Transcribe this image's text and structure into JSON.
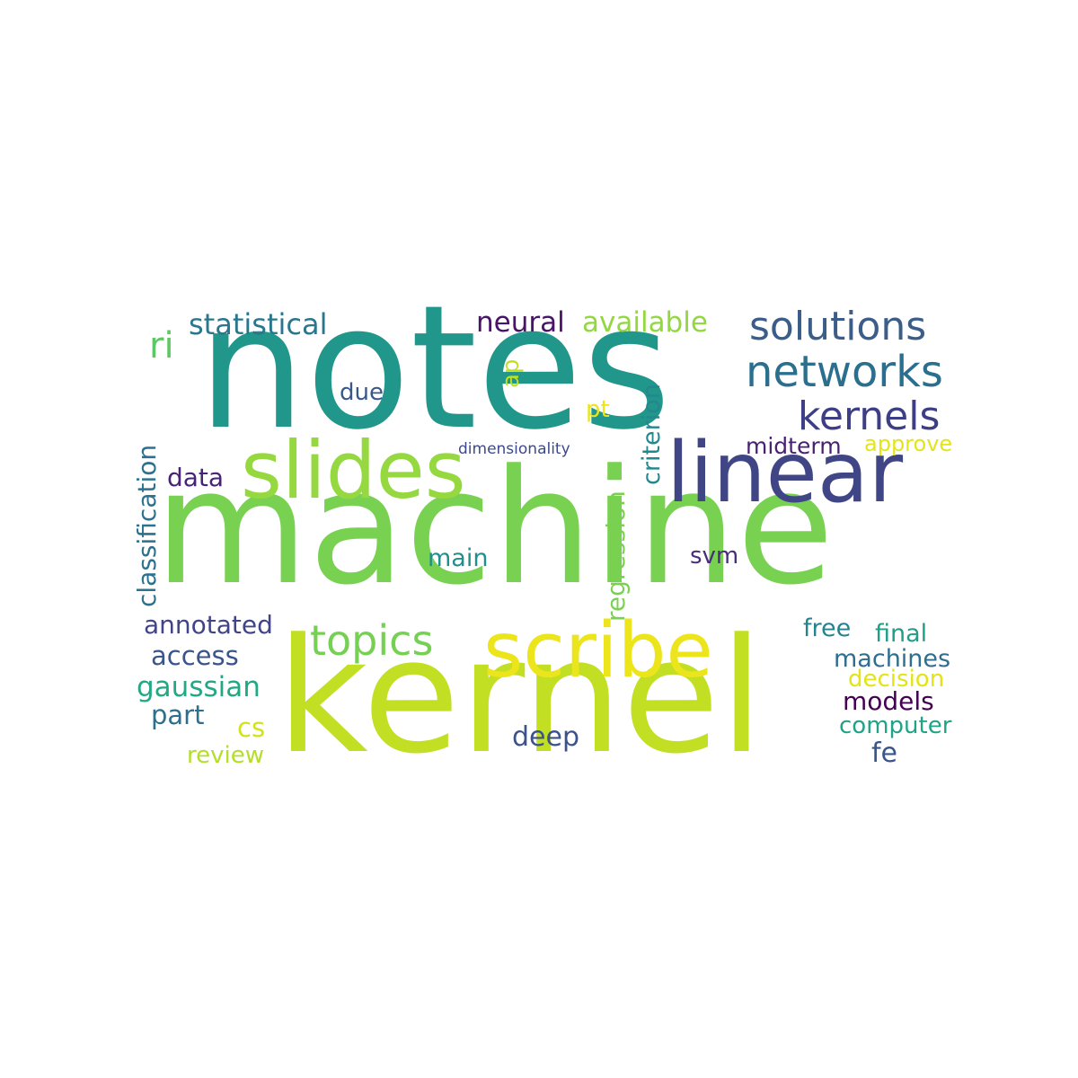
{
  "words": {
    "notes": {
      "text": "notes",
      "color": "#21968b"
    },
    "machine": {
      "text": "machine",
      "color": "#79d151"
    },
    "kernel": {
      "text": "kernel",
      "color": "#c2df23"
    },
    "linear": {
      "text": "linear",
      "color": "#404586"
    },
    "slides": {
      "text": "slides",
      "color": "#95d840"
    },
    "scribe": {
      "text": "scribe",
      "color": "#ece51b"
    },
    "solutions": {
      "text": "solutions",
      "color": "#3b5d8a"
    },
    "networks": {
      "text": "networks",
      "color": "#2b6f8e"
    },
    "kernels": {
      "text": "kernels",
      "color": "#3d3e85"
    },
    "topics": {
      "text": "topics",
      "color": "#76d054"
    },
    "statistical": {
      "text": "statistical",
      "color": "#2a768e"
    },
    "ri": {
      "text": "ri",
      "color": "#5cc863"
    },
    "neural": {
      "text": "neural",
      "color": "#481467"
    },
    "available": {
      "text": "available",
      "color": "#93d741"
    },
    "ap": {
      "text": "ap",
      "color": "#c3df23"
    },
    "due": {
      "text": "due",
      "color": "#38588c"
    },
    "pt": {
      "text": "pt",
      "color": "#ece51b"
    },
    "dimensionality": {
      "text": "dimensionality",
      "color": "#3e4989"
    },
    "midterm": {
      "text": "midterm",
      "color": "#482173"
    },
    "approve": {
      "text": "approve",
      "color": "#e5e419"
    },
    "classification": {
      "text": "classification",
      "color": "#2c718e"
    },
    "data": {
      "text": "data",
      "color": "#482475"
    },
    "regression": {
      "text": "regression",
      "color": "#7ad151"
    },
    "criterion": {
      "text": "criterion",
      "color": "#23888e"
    },
    "main": {
      "text": "main",
      "color": "#21908d"
    },
    "svm": {
      "text": "svm",
      "color": "#472d7b"
    },
    "annotated": {
      "text": "annotated",
      "color": "#414487"
    },
    "free": {
      "text": "free",
      "color": "#26828e"
    },
    "final": {
      "text": "final",
      "color": "#1f9e89"
    },
    "access": {
      "text": "access",
      "color": "#3a548c"
    },
    "machines": {
      "text": "machines",
      "color": "#2e6e8e"
    },
    "gaussian": {
      "text": "gaussian",
      "color": "#22a884"
    },
    "decision": {
      "text": "decision",
      "color": "#e2e418"
    },
    "models": {
      "text": "models",
      "color": "#440154"
    },
    "part": {
      "text": "part",
      "color": "#2d708e"
    },
    "cs": {
      "text": "cs",
      "color": "#d2e21b"
    },
    "computer": {
      "text": "computer",
      "color": "#20a386"
    },
    "deep": {
      "text": "deep",
      "color": "#3b528b"
    },
    "review": {
      "text": "review",
      "color": "#b5de2b"
    },
    "fe": {
      "text": "fe",
      "color": "#39568c"
    }
  }
}
